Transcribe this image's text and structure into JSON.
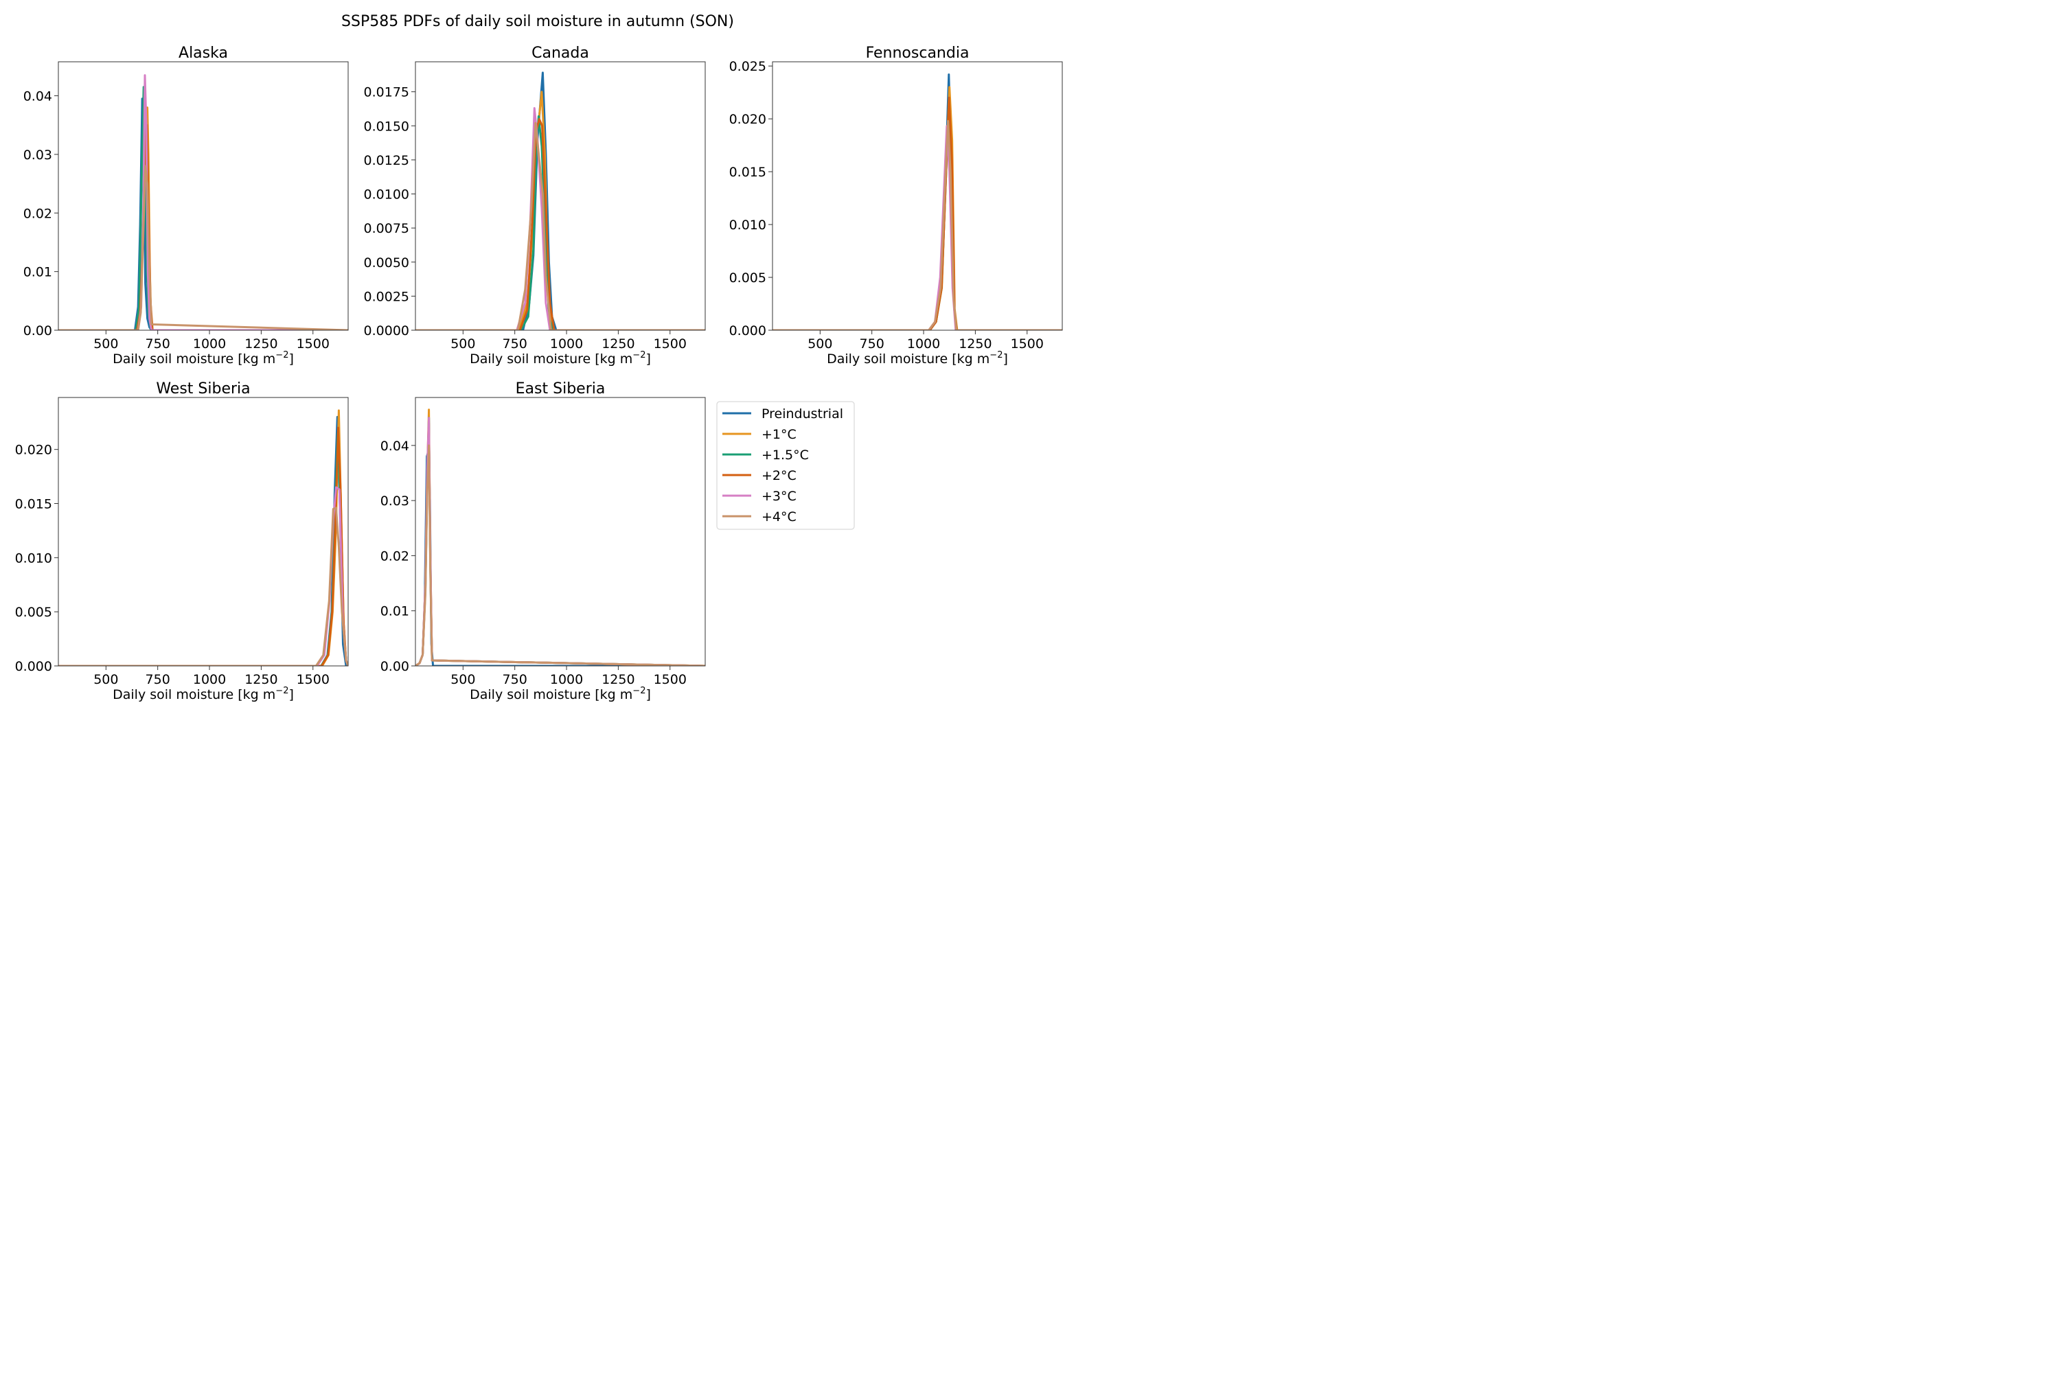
{
  "figure": {
    "title": "SSP585 PDFs of daily soil moisture in autumn (SON)"
  },
  "legend": {
    "placement": "right of bottom row",
    "entries": [
      {
        "name": "Preindustrial",
        "color": "#1f6fa8"
      },
      {
        "name": "+1°C",
        "color": "#e69520"
      },
      {
        "name": "+1.5°C",
        "color": "#1a9f74"
      },
      {
        "name": "+2°C",
        "color": "#d45f10"
      },
      {
        "name": "+3°C",
        "color": "#d67fc4"
      },
      {
        "name": "+4°C",
        "color": "#c9936a"
      }
    ]
  },
  "chart_data": [
    {
      "type": "line",
      "title": "Alaska",
      "xlabel": "Daily soil moisture [kg m",
      "xlabel_sup": "−2",
      "xlabel_end": "]",
      "ylabel": "",
      "xlim": [
        270,
        1670
      ],
      "ylim": [
        0,
        0.0458
      ],
      "xticks": [
        "500",
        "750",
        "1000",
        "1250",
        "1500"
      ],
      "xtick_values": [
        500,
        750,
        1000,
        1250,
        1500
      ],
      "yticks": [
        "0.00",
        "0.01",
        "0.02",
        "0.03",
        "0.04"
      ],
      "ytick_values": [
        0,
        0.01,
        0.02,
        0.03,
        0.04
      ],
      "grid": false,
      "series": [
        {
          "name": "Preindustrial",
          "x": [
            270,
            640,
            655,
            665,
            675,
            683,
            690,
            700,
            710,
            720,
            1670
          ],
          "y": [
            0,
            0,
            0.004,
            0.018,
            0.0395,
            0.03,
            0.008,
            0.002,
            0.0005,
            0,
            0
          ]
        },
        {
          "name": "+1°C",
          "x": [
            270,
            650,
            665,
            680,
            690,
            700,
            705,
            712,
            720,
            1670
          ],
          "y": [
            0,
            0,
            0.003,
            0.02,
            0.035,
            0.038,
            0.03,
            0.01,
            0,
            0
          ]
        },
        {
          "name": "+1.5°C",
          "x": [
            270,
            645,
            660,
            672,
            682,
            690,
            698,
            705,
            718,
            1670
          ],
          "y": [
            0,
            0,
            0.004,
            0.025,
            0.0415,
            0.03,
            0.01,
            0.003,
            0,
            0
          ]
        },
        {
          "name": "+2°C",
          "x": [
            270,
            650,
            665,
            678,
            688,
            698,
            706,
            715,
            725,
            1670
          ],
          "y": [
            0,
            0,
            0.003,
            0.015,
            0.03,
            0.035,
            0.02,
            0.005,
            0,
            0
          ]
        },
        {
          "name": "+3°C",
          "x": [
            270,
            655,
            670,
            680,
            688,
            695,
            702,
            710,
            720,
            1670
          ],
          "y": [
            0,
            0,
            0.004,
            0.02,
            0.0435,
            0.035,
            0.01,
            0.002,
            0,
            0
          ]
        },
        {
          "name": "+4°C",
          "x": [
            270,
            655,
            668,
            680,
            690,
            700,
            710,
            720,
            1670
          ],
          "y": [
            0,
            0,
            0.003,
            0.016,
            0.028,
            0.025,
            0.01,
            0.001,
            0
          ]
        }
      ]
    },
    {
      "type": "line",
      "title": "Canada",
      "xlabel": "Daily soil moisture [kg m",
      "xlabel_sup": "−2",
      "xlabel_end": "]",
      "ylabel": "",
      "xlim": [
        270,
        1670
      ],
      "ylim": [
        0,
        0.0197
      ],
      "xticks": [
        "500",
        "750",
        "1000",
        "1250",
        "1500"
      ],
      "xtick_values": [
        500,
        750,
        1000,
        1250,
        1500
      ],
      "yticks": [
        "0.0000",
        "0.0025",
        "0.0050",
        "0.0075",
        "0.0100",
        "0.0125",
        "0.0150",
        "0.0175"
      ],
      "ytick_values": [
        0,
        0.0025,
        0.005,
        0.0075,
        0.01,
        0.0125,
        0.015,
        0.0175
      ],
      "grid": false,
      "series": [
        {
          "name": "Preindustrial",
          "x": [
            270,
            790,
            820,
            840,
            860,
            870,
            885,
            900,
            915,
            930,
            950,
            1670
          ],
          "y": [
            0,
            0,
            0.002,
            0.0055,
            0.014,
            0.016,
            0.0189,
            0.013,
            0.005,
            0.001,
            0,
            0
          ]
        },
        {
          "name": "+1°C",
          "x": [
            270,
            770,
            810,
            835,
            855,
            870,
            880,
            895,
            910,
            930,
            1670
          ],
          "y": [
            0,
            0,
            0.002,
            0.007,
            0.014,
            0.016,
            0.0175,
            0.013,
            0.004,
            0,
            0
          ]
        },
        {
          "name": "+1.5°C",
          "x": [
            270,
            780,
            815,
            840,
            855,
            865,
            880,
            900,
            915,
            935,
            1670
          ],
          "y": [
            0,
            0,
            0.001,
            0.006,
            0.0135,
            0.0157,
            0.0135,
            0.006,
            0.001,
            0,
            0
          ]
        },
        {
          "name": "+2°C",
          "x": [
            270,
            775,
            810,
            835,
            852,
            868,
            882,
            900,
            920,
            940,
            1670
          ],
          "y": [
            0,
            0,
            0.0015,
            0.008,
            0.0145,
            0.0155,
            0.015,
            0.009,
            0.002,
            0,
            0
          ]
        },
        {
          "name": "+3°C",
          "x": [
            270,
            760,
            800,
            825,
            845,
            860,
            880,
            900,
            920,
            1670
          ],
          "y": [
            0,
            0,
            0.002,
            0.008,
            0.0163,
            0.014,
            0.009,
            0.002,
            0,
            0
          ]
        },
        {
          "name": "+4°C",
          "x": [
            270,
            765,
            800,
            830,
            850,
            865,
            885,
            900,
            925,
            1670
          ],
          "y": [
            0,
            0,
            0.003,
            0.009,
            0.0152,
            0.013,
            0.01,
            0.004,
            0,
            0
          ]
        }
      ]
    },
    {
      "type": "line",
      "title": "Fennoscandia",
      "xlabel": "Daily soil moisture [kg m",
      "xlabel_sup": "−2",
      "xlabel_end": "]",
      "ylabel": "",
      "xlim": [
        270,
        1670
      ],
      "ylim": [
        0,
        0.0254
      ],
      "xticks": [
        "500",
        "750",
        "1000",
        "1250",
        "1500"
      ],
      "xtick_values": [
        500,
        750,
        1000,
        1250,
        1500
      ],
      "yticks": [
        "0.000",
        "0.005",
        "0.010",
        "0.015",
        "0.020",
        "0.025"
      ],
      "ytick_values": [
        0,
        0.005,
        0.01,
        0.015,
        0.02,
        0.025
      ],
      "grid": false,
      "series": [
        {
          "name": "Preindustrial",
          "x": [
            270,
            1030,
            1060,
            1085,
            1105,
            1122,
            1135,
            1148,
            1160,
            1670
          ],
          "y": [
            0,
            0,
            0.0008,
            0.004,
            0.014,
            0.0242,
            0.015,
            0.002,
            0,
            0
          ]
        },
        {
          "name": "+1°C",
          "x": [
            270,
            1030,
            1060,
            1088,
            1108,
            1125,
            1138,
            1150,
            1162,
            1670
          ],
          "y": [
            0,
            0,
            0.0008,
            0.004,
            0.015,
            0.023,
            0.018,
            0.002,
            0,
            0
          ]
        },
        {
          "name": "+1.5°C",
          "x": [
            270,
            1030,
            1060,
            1087,
            1107,
            1122,
            1136,
            1148,
            1160,
            1670
          ],
          "y": [
            0,
            0,
            0.0008,
            0.004,
            0.014,
            0.021,
            0.015,
            0.002,
            0,
            0
          ]
        },
        {
          "name": "+2°C",
          "x": [
            270,
            1030,
            1060,
            1087,
            1107,
            1123,
            1137,
            1149,
            1160,
            1670
          ],
          "y": [
            0,
            0,
            0.0008,
            0.004,
            0.014,
            0.022,
            0.016,
            0.002,
            0,
            0
          ]
        },
        {
          "name": "+3°C",
          "x": [
            270,
            1025,
            1055,
            1080,
            1100,
            1112,
            1125,
            1140,
            1155,
            1670
          ],
          "y": [
            0,
            0,
            0.0008,
            0.005,
            0.014,
            0.0193,
            0.015,
            0.004,
            0,
            0
          ]
        },
        {
          "name": "+4°C",
          "x": [
            270,
            1025,
            1055,
            1082,
            1102,
            1118,
            1130,
            1145,
            1158,
            1670
          ],
          "y": [
            0,
            0,
            0.0008,
            0.004,
            0.013,
            0.0198,
            0.015,
            0.003,
            0,
            0
          ]
        }
      ]
    },
    {
      "type": "line",
      "title": "West Siberia",
      "xlabel": "Daily soil moisture [kg m",
      "xlabel_sup": "−2",
      "xlabel_end": "]",
      "ylabel": "",
      "xlim": [
        270,
        1670
      ],
      "ylim": [
        0,
        0.0248
      ],
      "xticks": [
        "500",
        "750",
        "1000",
        "1250",
        "1500"
      ],
      "xtick_values": [
        500,
        750,
        1000,
        1250,
        1500
      ],
      "yticks": [
        "0.000",
        "0.005",
        "0.010",
        "0.015",
        "0.020"
      ],
      "ytick_values": [
        0,
        0.005,
        0.01,
        0.015,
        0.02
      ],
      "grid": false,
      "series": [
        {
          "name": "Preindustrial",
          "x": [
            270,
            1540,
            1570,
            1590,
            1605,
            1618,
            1630,
            1645,
            1660,
            1670
          ],
          "y": [
            0,
            0,
            0.001,
            0.005,
            0.016,
            0.023,
            0.015,
            0.002,
            0,
            0
          ]
        },
        {
          "name": "+1°C",
          "x": [
            270,
            1545,
            1575,
            1595,
            1610,
            1625,
            1635,
            1648,
            1660,
            1670
          ],
          "y": [
            0,
            0,
            0.001,
            0.005,
            0.012,
            0.0236,
            0.015,
            0.004,
            0.0005,
            0
          ]
        },
        {
          "name": "+1.5°C",
          "x": [
            270,
            1540,
            1572,
            1592,
            1606,
            1620,
            1632,
            1645,
            1660,
            1670
          ],
          "y": [
            0,
            0,
            0.001,
            0.005,
            0.014,
            0.0215,
            0.015,
            0.004,
            0.0005,
            0
          ]
        },
        {
          "name": "+2°C",
          "x": [
            270,
            1542,
            1573,
            1593,
            1608,
            1622,
            1634,
            1648,
            1660,
            1670
          ],
          "y": [
            0,
            0,
            0.001,
            0.005,
            0.013,
            0.022,
            0.016,
            0.004,
            0.0005,
            0
          ]
        },
        {
          "name": "+3°C",
          "x": [
            270,
            1520,
            1555,
            1580,
            1598,
            1612,
            1628,
            1645,
            1660,
            1670
          ],
          "y": [
            0,
            0,
            0.001,
            0.006,
            0.0135,
            0.0165,
            0.0163,
            0.004,
            0.0005,
            0
          ]
        },
        {
          "name": "+4°C",
          "x": [
            270,
            1515,
            1550,
            1578,
            1598,
            1612,
            1625,
            1640,
            1660,
            1670
          ],
          "y": [
            0,
            0,
            0.001,
            0.006,
            0.0145,
            0.0146,
            0.011,
            0.005,
            0.0005,
            0
          ]
        }
      ]
    },
    {
      "type": "line",
      "title": "East Siberia",
      "xlabel": "Daily soil moisture [kg m",
      "xlabel_sup": "−2",
      "xlabel_end": "]",
      "ylabel": "",
      "xlim": [
        270,
        1670
      ],
      "ylim": [
        0,
        0.0487
      ],
      "xticks": [
        "500",
        "750",
        "1000",
        "1250",
        "1500"
      ],
      "xtick_values": [
        500,
        750,
        1000,
        1250,
        1500
      ],
      "yticks": [
        "0.00",
        "0.01",
        "0.02",
        "0.03",
        "0.04"
      ],
      "ytick_values": [
        0,
        0.01,
        0.02,
        0.03,
        0.04
      ],
      "grid": false,
      "series": [
        {
          "name": "Preindustrial",
          "x": [
            270,
            290,
            305,
            315,
            325,
            333,
            340,
            347,
            355,
            1670
          ],
          "y": [
            0,
            0.0005,
            0.002,
            0.012,
            0.038,
            0.039,
            0.03,
            0.004,
            0,
            0
          ]
        },
        {
          "name": "+1°C",
          "x": [
            270,
            290,
            305,
            318,
            327,
            335,
            342,
            350,
            1670
          ],
          "y": [
            0,
            0.0005,
            0.002,
            0.015,
            0.035,
            0.0465,
            0.02,
            0.001,
            0
          ]
        },
        {
          "name": "+1.5°C",
          "x": [
            270,
            290,
            305,
            318,
            327,
            335,
            342,
            350,
            1670
          ],
          "y": [
            0,
            0.0005,
            0.002,
            0.014,
            0.034,
            0.045,
            0.018,
            0.001,
            0
          ]
        },
        {
          "name": "+2°C",
          "x": [
            270,
            290,
            305,
            318,
            327,
            335,
            342,
            350,
            1670
          ],
          "y": [
            0,
            0.0005,
            0.002,
            0.014,
            0.033,
            0.044,
            0.019,
            0.001,
            0
          ]
        },
        {
          "name": "+3°C",
          "x": [
            270,
            290,
            305,
            318,
            327,
            335,
            342,
            350,
            1670
          ],
          "y": [
            0,
            0.0005,
            0.002,
            0.015,
            0.036,
            0.045,
            0.02,
            0.001,
            0
          ]
        },
        {
          "name": "+4°C",
          "x": [
            270,
            290,
            305,
            318,
            327,
            335,
            342,
            350,
            1670
          ],
          "y": [
            0,
            0.0005,
            0.002,
            0.013,
            0.032,
            0.04,
            0.017,
            0.001,
            0
          ]
        }
      ]
    }
  ]
}
